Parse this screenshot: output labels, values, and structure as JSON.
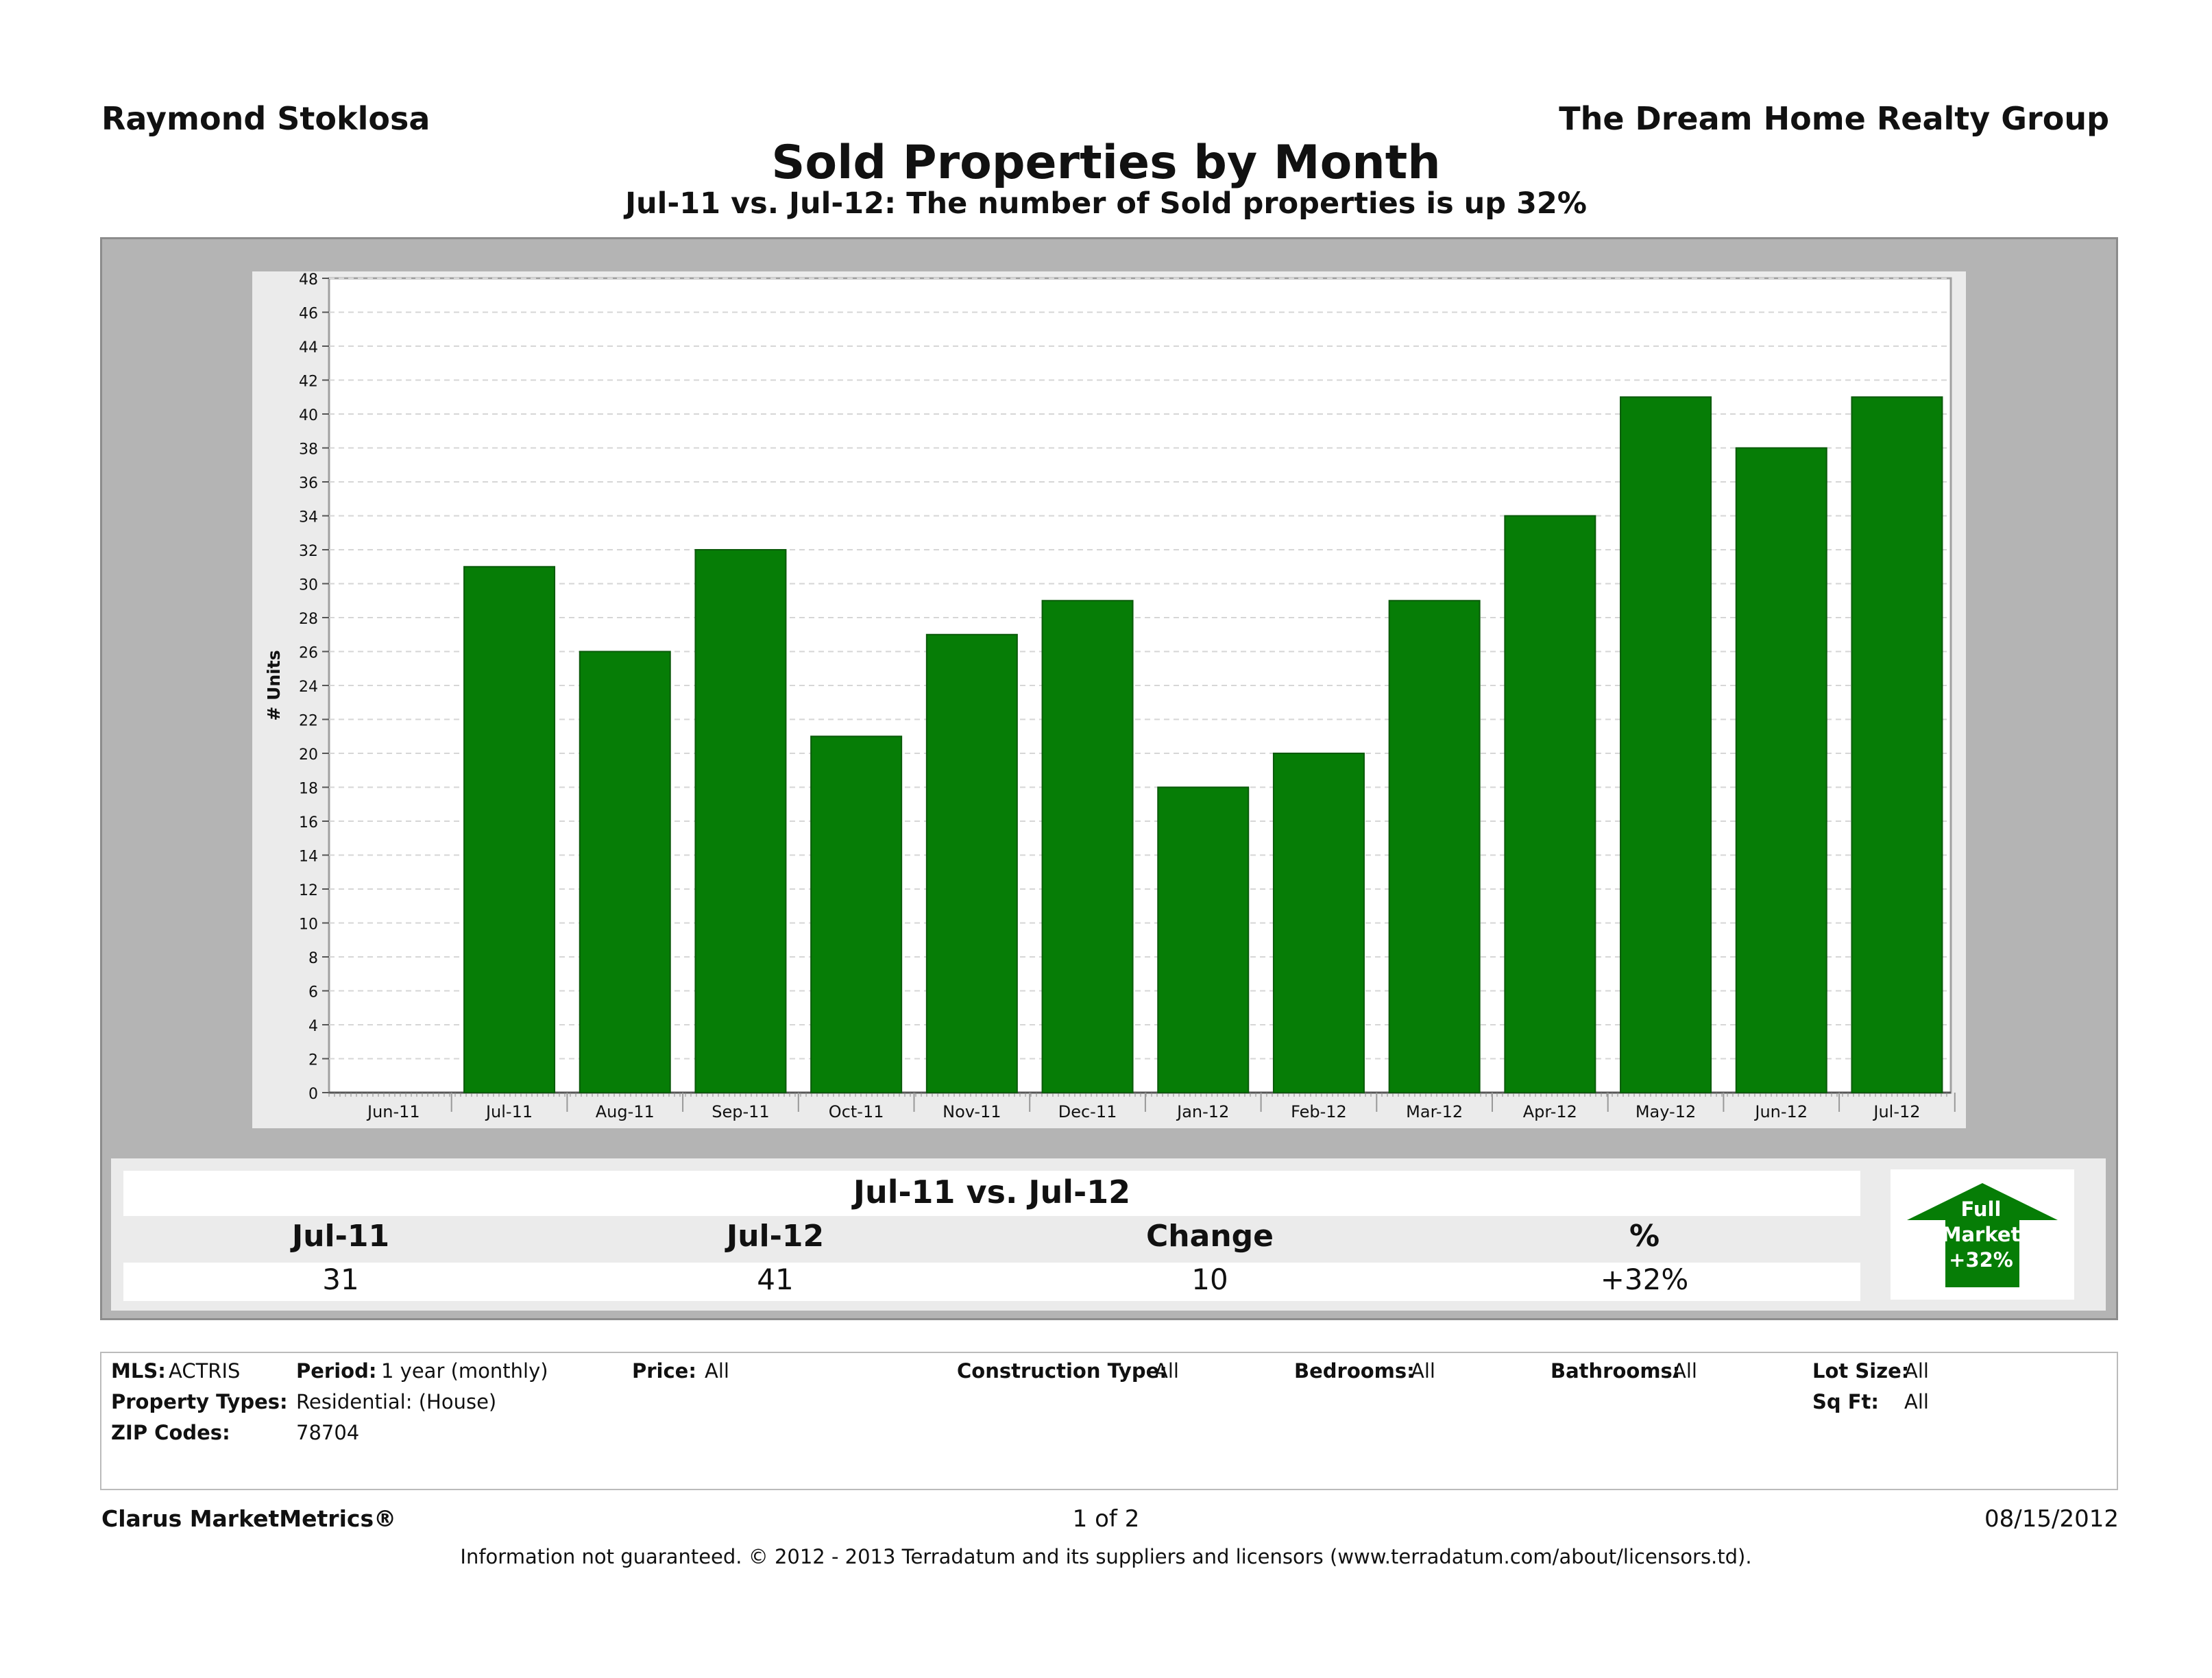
{
  "header": {
    "agent": "Raymond Stoklosa",
    "company": "The Dream Home Realty Group",
    "title": "Sold Properties by Month",
    "subtitle": "Jul-11 vs. Jul-12: The number of Sold properties is up 32%"
  },
  "chart_data": {
    "type": "bar",
    "categories": [
      "Jun-11",
      "Jul-11",
      "Aug-11",
      "Sep-11",
      "Oct-11",
      "Nov-11",
      "Dec-11",
      "Jan-12",
      "Feb-12",
      "Mar-12",
      "Apr-12",
      "May-12",
      "Jun-12",
      "Jul-12"
    ],
    "values": [
      null,
      31,
      26,
      32,
      21,
      27,
      29,
      18,
      20,
      29,
      34,
      41,
      38,
      41
    ],
    "ylabel": "# Units",
    "ylim": [
      0,
      48
    ],
    "ytick_step": 2,
    "grid": true,
    "bar_color": "#067d06"
  },
  "summary": {
    "title": "Jul-11 vs. Jul-12",
    "headers": [
      "Jul-11",
      "Jul-12",
      "Change",
      "%"
    ],
    "values": [
      "31",
      "41",
      "10",
      "+32%"
    ],
    "badge": {
      "line1": "Full",
      "line2": "Market",
      "line3": "+32%",
      "color": "#067d06"
    }
  },
  "filters": {
    "mls_label": "MLS:",
    "mls": "ACTRIS",
    "period_label": "Period:",
    "period": "1 year (monthly)",
    "price_label": "Price:",
    "price": "All",
    "construction_label": "Construction Type:",
    "construction": "All",
    "bedrooms_label": "Bedrooms:",
    "bedrooms": "All",
    "bathrooms_label": "Bathrooms:",
    "bathrooms": "All",
    "lotsize_label": "Lot Size:",
    "lotsize": "All",
    "ptypes_label": "Property Types:",
    "ptypes": "Residential: (House)",
    "sqft_label": "Sq Ft:",
    "sqft": "All",
    "zip_label": "ZIP Codes:",
    "zip": "78704"
  },
  "footer": {
    "brand": "Clarus MarketMetrics®",
    "page": "1 of 2",
    "date": "08/15/2012",
    "disclaimer": "Information not guaranteed.  © 2012 - 2013 Terradatum and its suppliers and licensors (www.terradatum.com/about/licensors.td)."
  }
}
